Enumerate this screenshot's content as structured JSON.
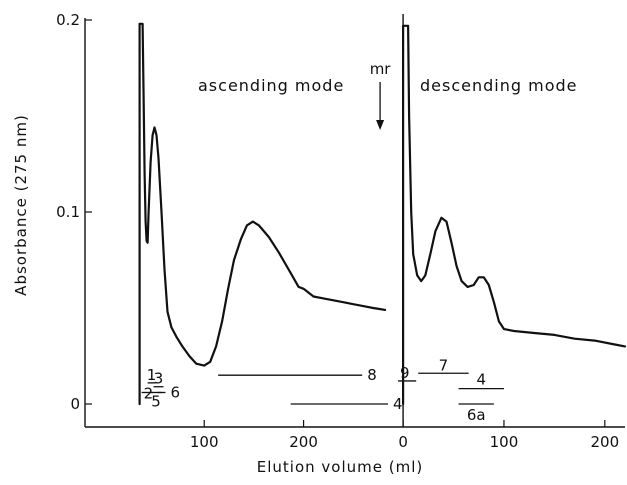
{
  "chart_data": {
    "type": "line",
    "xlabel": "Elution volume (ml)",
    "ylabel": "Absorbance (275 nm)",
    "ylim": [
      0,
      0.2
    ],
    "y_ticks": [
      {
        "value": 0,
        "label": "0"
      },
      {
        "value": 0.1,
        "label": "0.1"
      },
      {
        "value": 0.2,
        "label": "0.2"
      }
    ],
    "grid": false,
    "panels": [
      {
        "id": "ascending",
        "title": "ascending mode",
        "xlim": [
          -20,
          290
        ],
        "x_ticks": [
          {
            "value": 100,
            "label": "100"
          },
          {
            "value": 200,
            "label": "200"
          }
        ],
        "annotation": {
          "label": "mr",
          "x": 277
        },
        "series": [
          {
            "points": [
              [
                35,
                0.0
              ],
              [
                35,
                0.198
              ],
              [
                38,
                0.198
              ],
              [
                39,
                0.16
              ],
              [
                40,
                0.12
              ],
              [
                41,
                0.095
              ],
              [
                42,
                0.085
              ],
              [
                43,
                0.084
              ],
              [
                44,
                0.1
              ],
              [
                46,
                0.126
              ],
              [
                48,
                0.14
              ],
              [
                50,
                0.144
              ],
              [
                52,
                0.14
              ],
              [
                54,
                0.128
              ],
              [
                57,
                0.1
              ],
              [
                60,
                0.07
              ],
              [
                63,
                0.048
              ],
              [
                67,
                0.04
              ],
              [
                72,
                0.035
              ],
              [
                78,
                0.03
              ],
              [
                85,
                0.025
              ],
              [
                92,
                0.021
              ],
              [
                100,
                0.02
              ],
              [
                106,
                0.022
              ],
              [
                112,
                0.03
              ],
              [
                118,
                0.043
              ],
              [
                124,
                0.06
              ],
              [
                130,
                0.075
              ],
              [
                137,
                0.086
              ],
              [
                143,
                0.093
              ],
              [
                149,
                0.095
              ],
              [
                155,
                0.093
              ],
              [
                165,
                0.087
              ],
              [
                175,
                0.079
              ],
              [
                185,
                0.07
              ],
              [
                195,
                0.061
              ],
              [
                200,
                0.06
              ],
              [
                210,
                0.056
              ],
              [
                220,
                0.055
              ],
              [
                230,
                0.054
              ],
              [
                240,
                0.053
              ],
              [
                250,
                0.052
              ],
              [
                260,
                0.051
              ],
              [
                270,
                0.05
              ],
              [
                282,
                0.049
              ]
            ]
          }
        ],
        "fractions": [
          {
            "label": "1",
            "x1": 43,
            "x2": 51,
            "y": 0.011
          },
          {
            "label": "3",
            "x1": 49,
            "x2": 59,
            "y": 0.009
          },
          {
            "label": "2",
            "x1": 37,
            "x2": 48,
            "y": 0.006
          },
          {
            "label": "5",
            "x1": 46,
            "x2": 57,
            "y": 0.006
          },
          {
            "label": "6",
            "x1": 53,
            "x2": 61,
            "y": 0.006
          },
          {
            "label": "8",
            "x1": 114,
            "x2": 259,
            "y": 0.015
          },
          {
            "label": "4",
            "x1": 187,
            "x2": 285,
            "y": 0.0
          }
        ]
      },
      {
        "id": "descending",
        "title": "descending mode",
        "xlim": [
          -10,
          220
        ],
        "x_ticks": [
          {
            "value": 0,
            "label": "0"
          },
          {
            "value": 100,
            "label": "100"
          },
          {
            "value": 200,
            "label": "200"
          }
        ],
        "series": [
          {
            "points": [
              [
                0,
                0.0
              ],
              [
                0,
                0.197
              ],
              [
                5,
                0.197
              ],
              [
                6,
                0.15
              ],
              [
                8,
                0.1
              ],
              [
                10,
                0.078
              ],
              [
                14,
                0.067
              ],
              [
                18,
                0.064
              ],
              [
                22,
                0.067
              ],
              [
                27,
                0.078
              ],
              [
                32,
                0.09
              ],
              [
                38,
                0.097
              ],
              [
                43,
                0.095
              ],
              [
                48,
                0.084
              ],
              [
                53,
                0.072
              ],
              [
                58,
                0.064
              ],
              [
                64,
                0.061
              ],
              [
                70,
                0.062
              ],
              [
                75,
                0.066
              ],
              [
                80,
                0.066
              ],
              [
                85,
                0.062
              ],
              [
                90,
                0.053
              ],
              [
                95,
                0.043
              ],
              [
                100,
                0.039
              ],
              [
                110,
                0.038
              ],
              [
                130,
                0.037
              ],
              [
                150,
                0.036
              ],
              [
                170,
                0.034
              ],
              [
                190,
                0.033
              ],
              [
                210,
                0.031
              ],
              [
                220,
                0.03
              ]
            ]
          }
        ],
        "fractions": [
          {
            "label": "9",
            "x1": -5,
            "x2": 13,
            "y": 0.012
          },
          {
            "label": "7",
            "x1": 15,
            "x2": 65,
            "y": 0.016
          },
          {
            "label": "4",
            "x1": 55,
            "x2": 100,
            "y": 0.008
          },
          {
            "label": "6a",
            "x1": 55,
            "x2": 90,
            "y": 0.0
          }
        ]
      }
    ]
  }
}
